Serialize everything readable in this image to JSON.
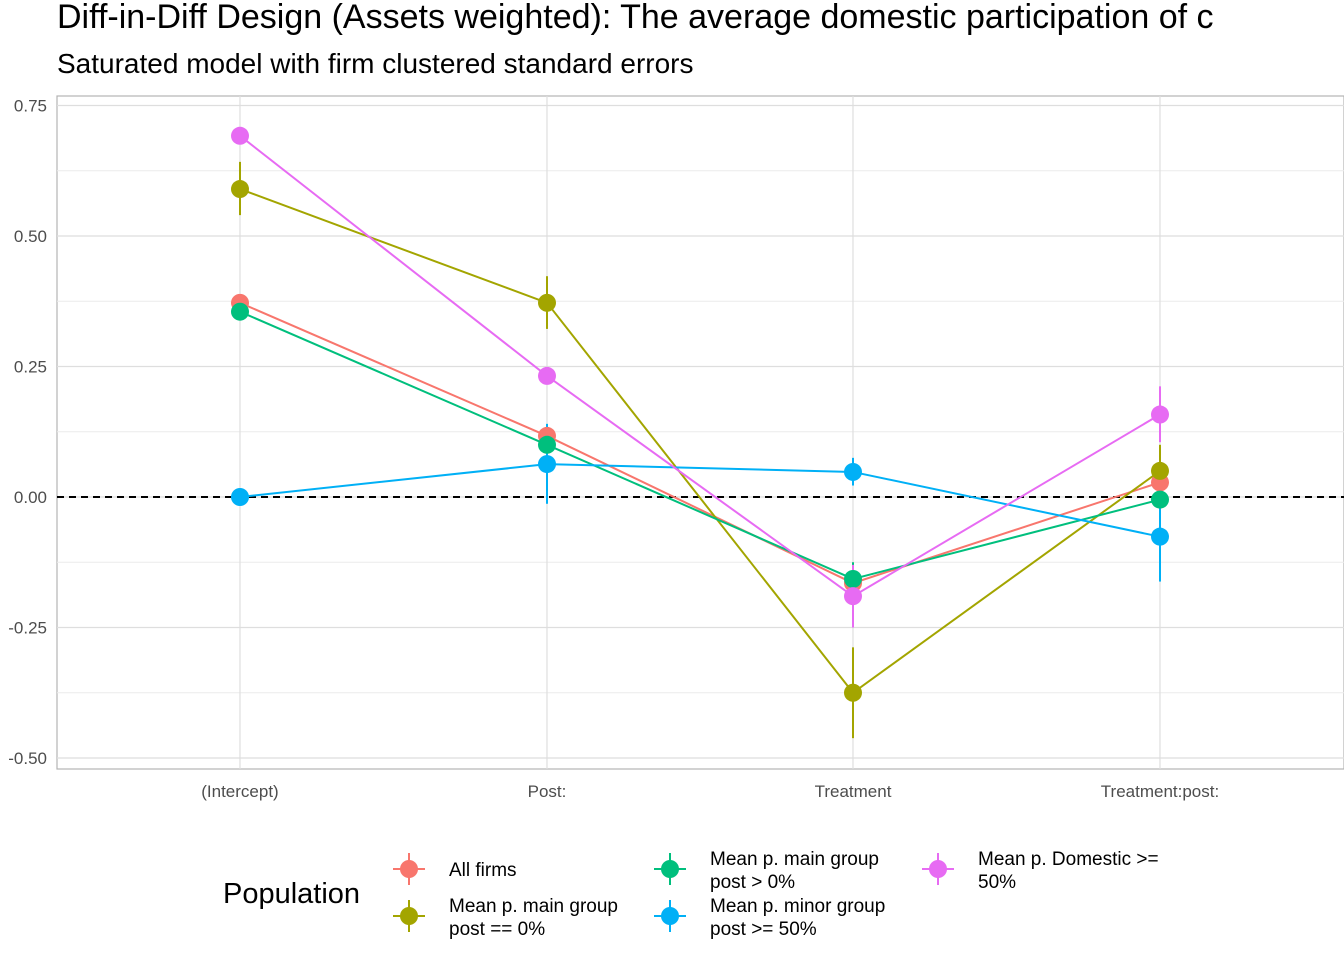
{
  "chart_data": {
    "type": "line",
    "title": "Diff-in-Diff Design (Assets weighted): The average domestic participation of c",
    "subtitle": "Saturated model with firm clustered standard errors",
    "xlabel": "",
    "ylabel": "",
    "categories": [
      "(Intercept)",
      "Post:",
      "Treatment",
      "Treatment:post:"
    ],
    "ylim": [
      -0.5,
      0.75
    ],
    "yticks": [
      -0.5,
      -0.25,
      0.0,
      0.25,
      0.5,
      0.75
    ],
    "ytick_labels": [
      "-0.50",
      "-0.25",
      "0.00",
      "0.25",
      "0.50",
      "0.75"
    ],
    "reference_line": {
      "y": 0,
      "style": "dashed",
      "color": "#000000"
    },
    "grid": true,
    "legend": {
      "title": "Population",
      "position": "bottom"
    },
    "series": [
      {
        "name": "All firms",
        "name_lines": [
          "All firms"
        ],
        "color": "#F8766D",
        "values": [
          0.372,
          0.117,
          -0.165,
          0.028
        ],
        "lower": [
          0.372,
          0.117,
          -0.165,
          0.028
        ],
        "upper": [
          0.372,
          0.117,
          -0.165,
          0.028
        ]
      },
      {
        "name": "Mean p. main group post == 0%",
        "name_lines": [
          "Mean p. main group",
          "post == 0%"
        ],
        "color": "#A3A500",
        "values": [
          0.59,
          0.372,
          -0.375,
          0.05
        ],
        "lower": [
          0.54,
          0.322,
          -0.462,
          0.0
        ],
        "upper": [
          0.642,
          0.423,
          -0.288,
          0.1
        ]
      },
      {
        "name": "Mean p. main group post > 0%",
        "name_lines": [
          "Mean p. main group",
          "post > 0%"
        ],
        "color": "#00BF7D",
        "values": [
          0.355,
          0.1,
          -0.157,
          -0.005
        ],
        "lower": [
          0.355,
          0.06,
          -0.19,
          -0.02
        ],
        "upper": [
          0.355,
          0.14,
          -0.125,
          0.01
        ]
      },
      {
        "name": "Mean p. minor group post >= 50%",
        "name_lines": [
          "Mean p. minor group",
          "post >= 50%"
        ],
        "color": "#00B0F6",
        "values": [
          0.0,
          0.063,
          0.048,
          -0.076
        ],
        "lower": [
          0.0,
          -0.013,
          0.022,
          -0.162
        ],
        "upper": [
          0.0,
          0.14,
          0.075,
          0.01
        ]
      },
      {
        "name": "Mean p. Domestic >= 50%",
        "name_lines": [
          "Mean p. Domestic >=",
          "50%"
        ],
        "color": "#E76BF3",
        "values": [
          0.692,
          0.232,
          -0.19,
          0.158
        ],
        "lower": [
          0.692,
          0.232,
          -0.25,
          0.105
        ],
        "upper": [
          0.692,
          0.232,
          -0.13,
          0.212
        ]
      }
    ]
  }
}
